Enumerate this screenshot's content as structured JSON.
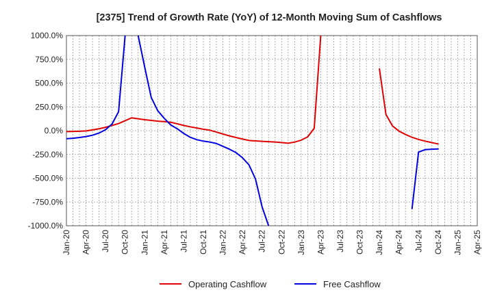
{
  "chart_data": {
    "type": "line",
    "title": "[2375]  Trend of Growth Rate (YoY) of 12-Month Moving Sum of Cashflows",
    "xlabel": "",
    "ylabel": "",
    "ylim": [
      -1000,
      1000
    ],
    "y_ticks": [
      1000,
      750,
      500,
      250,
      0,
      -250,
      -500,
      -750,
      -1000
    ],
    "y_tick_labels": [
      "1000.0%",
      "750.0%",
      "500.0%",
      "250.0%",
      "0.0%",
      "-250.0%",
      "-500.0%",
      "-750.0%",
      "-1000.0%"
    ],
    "x_range": [
      "2020-01",
      "2025-04"
    ],
    "x_tick_labels": [
      "Jan-20",
      "Apr-20",
      "Jul-20",
      "Oct-20",
      "Jan-21",
      "Apr-21",
      "Jul-21",
      "Oct-21",
      "Jan-22",
      "Apr-22",
      "Jul-22",
      "Oct-22",
      "Jan-23",
      "Apr-23",
      "Jul-23",
      "Oct-23",
      "Jan-24",
      "Apr-24",
      "Jul-24",
      "Oct-24",
      "Jan-25",
      "Apr-25"
    ],
    "grid": true,
    "legend": "bottom",
    "series": [
      {
        "name": "Operating Cashflow",
        "color": "#e00000",
        "points": [
          [
            "2020-01",
            -10
          ],
          [
            "2020-02",
            -8
          ],
          [
            "2020-03",
            -6
          ],
          [
            "2020-04",
            -3
          ],
          [
            "2020-05",
            8
          ],
          [
            "2020-06",
            20
          ],
          [
            "2020-07",
            35
          ],
          [
            "2020-08",
            55
          ],
          [
            "2020-09",
            75
          ],
          [
            "2020-10",
            105
          ],
          [
            "2020-11",
            135
          ],
          [
            "2020-12",
            125
          ],
          [
            "2021-01",
            115
          ],
          [
            "2021-02",
            108
          ],
          [
            "2021-03",
            100
          ],
          [
            "2021-04",
            95
          ],
          [
            "2021-05",
            88
          ],
          [
            "2021-06",
            72
          ],
          [
            "2021-07",
            55
          ],
          [
            "2021-08",
            40
          ],
          [
            "2021-09",
            28
          ],
          [
            "2021-10",
            15
          ],
          [
            "2021-11",
            5
          ],
          [
            "2021-12",
            -15
          ],
          [
            "2022-01",
            -35
          ],
          [
            "2022-02",
            -55
          ],
          [
            "2022-03",
            -72
          ],
          [
            "2022-04",
            -88
          ],
          [
            "2022-05",
            -103
          ],
          [
            "2022-06",
            -108
          ],
          [
            "2022-07",
            -112
          ],
          [
            "2022-08",
            -116
          ],
          [
            "2022-09",
            -120
          ],
          [
            "2022-10",
            -125
          ],
          [
            "2022-11",
            -132
          ],
          [
            "2022-12",
            -120
          ],
          [
            "2023-01",
            -100
          ],
          [
            "2023-02",
            -65
          ],
          [
            "2023-03",
            25
          ],
          [
            "2023-04",
            1000
          ],
          null,
          [
            "2024-01",
            650
          ],
          [
            "2024-02",
            170
          ],
          [
            "2024-03",
            50
          ],
          [
            "2024-04",
            -5
          ],
          [
            "2024-05",
            -40
          ],
          [
            "2024-06",
            -70
          ],
          [
            "2024-07",
            -92
          ],
          [
            "2024-08",
            -110
          ],
          [
            "2024-09",
            -125
          ],
          [
            "2024-10",
            -140
          ]
        ]
      },
      {
        "name": "Free Cashflow",
        "color": "#0000e0",
        "points": [
          [
            "2020-01",
            -85
          ],
          [
            "2020-02",
            -80
          ],
          [
            "2020-03",
            -72
          ],
          [
            "2020-04",
            -62
          ],
          [
            "2020-05",
            -48
          ],
          [
            "2020-06",
            -25
          ],
          [
            "2020-07",
            10
          ],
          [
            "2020-08",
            70
          ],
          [
            "2020-09",
            200
          ],
          [
            "2020-10",
            1000
          ],
          null,
          [
            "2020-12",
            1000
          ],
          [
            "2021-01",
            670
          ],
          [
            "2021-02",
            350
          ],
          [
            "2021-03",
            210
          ],
          [
            "2021-04",
            130
          ],
          [
            "2021-05",
            60
          ],
          [
            "2021-06",
            20
          ],
          [
            "2021-07",
            -30
          ],
          [
            "2021-08",
            -70
          ],
          [
            "2021-09",
            -95
          ],
          [
            "2021-10",
            -110
          ],
          [
            "2021-11",
            -120
          ],
          [
            "2021-12",
            -135
          ],
          [
            "2022-01",
            -165
          ],
          [
            "2022-02",
            -195
          ],
          [
            "2022-03",
            -230
          ],
          [
            "2022-04",
            -285
          ],
          [
            "2022-05",
            -360
          ],
          [
            "2022-06",
            -510
          ],
          [
            "2022-07",
            -800
          ],
          [
            "2022-08",
            -1000
          ],
          null,
          [
            "2024-06",
            -820
          ],
          [
            "2024-07",
            -225
          ],
          [
            "2024-08",
            -200
          ],
          [
            "2024-09",
            -195
          ],
          [
            "2024-10",
            -192
          ]
        ]
      }
    ]
  }
}
